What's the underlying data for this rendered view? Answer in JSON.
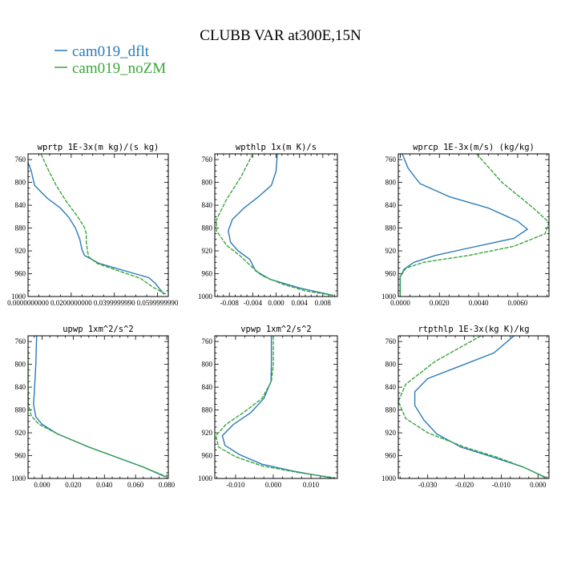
{
  "figure": {
    "title": "CLUBB VAR at300E,15N"
  },
  "legend": [
    {
      "name": "cam019_dflt",
      "color": "#2b7bb9"
    },
    {
      "name": "cam019_noZM",
      "color": "#3aa63a"
    }
  ],
  "chart_data": [
    {
      "type": "line",
      "title": "wprtp  1E-3x(m kg)/(s kg)",
      "xlim": [
        0.0,
        0.065
      ],
      "ylim": [
        1000,
        750
      ],
      "xticks": [
        0.0,
        0.02,
        0.04,
        0.06
      ],
      "xtick_labels": [
        "0.0000000000",
        "0.0200000000",
        "0.0399999990",
        "0.0599999990"
      ],
      "yticks": [
        760,
        800,
        840,
        880,
        920,
        960,
        1000
      ],
      "series": [
        {
          "name": "cam019_dflt",
          "points": [
            [
              0.0,
              765
            ],
            [
              0.0015,
              780
            ],
            [
              0.003,
              805
            ],
            [
              0.009,
              828
            ],
            [
              0.015,
              845
            ],
            [
              0.019,
              862
            ],
            [
              0.022,
              880
            ],
            [
              0.024,
              900
            ],
            [
              0.025,
              918
            ],
            [
              0.0262,
              928
            ],
            [
              0.033,
              942
            ],
            [
              0.045,
              955
            ],
            [
              0.056,
              967
            ],
            [
              0.059,
              977
            ],
            [
              0.063,
              996
            ]
          ]
        },
        {
          "name": "cam019_noZM",
          "points": [
            [
              0.006,
              750
            ],
            [
              0.009,
              775
            ],
            [
              0.013,
              805
            ],
            [
              0.018,
              835
            ],
            [
              0.023,
              860
            ],
            [
              0.026,
              878
            ],
            [
              0.027,
              890
            ],
            [
              0.027,
              905
            ],
            [
              0.0275,
              918
            ],
            [
              0.028,
              930
            ],
            [
              0.032,
              942
            ],
            [
              0.042,
              955
            ],
            [
              0.052,
              968
            ],
            [
              0.058,
              984
            ],
            [
              0.064,
              996
            ]
          ]
        }
      ]
    },
    {
      "type": "line",
      "title": "wpthlp  1x(m K)/s",
      "xlim": [
        -0.0105,
        0.0105
      ],
      "ylim": [
        1000,
        750
      ],
      "xticks": [
        -0.008,
        -0.004,
        0.0,
        0.004,
        0.008
      ],
      "xtick_labels": [
        "-0.008",
        "-0.004",
        "0.000",
        "0.004",
        "0.008"
      ],
      "yticks": [
        760,
        800,
        840,
        880,
        920,
        960,
        1000
      ],
      "series": [
        {
          "name": "cam019_dflt",
          "points": [
            [
              0.0002,
              750
            ],
            [
              0.0,
              780
            ],
            [
              -0.0008,
              805
            ],
            [
              -0.003,
              825
            ],
            [
              -0.0055,
              845
            ],
            [
              -0.0075,
              865
            ],
            [
              -0.0082,
              885
            ],
            [
              -0.0078,
              905
            ],
            [
              -0.0065,
              920
            ],
            [
              -0.0045,
              935
            ],
            [
              -0.0035,
              955
            ],
            [
              -0.001,
              970
            ],
            [
              0.004,
              985
            ],
            [
              0.0098,
              998
            ]
          ]
        },
        {
          "name": "cam019_noZM",
          "points": [
            [
              -0.004,
              750
            ],
            [
              -0.006,
              790
            ],
            [
              -0.0085,
              830
            ],
            [
              -0.0102,
              865
            ],
            [
              -0.0102,
              885
            ],
            [
              -0.0085,
              910
            ],
            [
              -0.006,
              930
            ],
            [
              -0.0045,
              945
            ],
            [
              -0.0025,
              963
            ],
            [
              0.001,
              978
            ],
            [
              0.005,
              990
            ],
            [
              0.0098,
              998
            ]
          ]
        }
      ]
    },
    {
      "type": "line",
      "title": "wprcp  1E-3x(m/s) (kg/kg)",
      "xlim": [
        -0.0001,
        0.0076
      ],
      "ylim": [
        1000,
        750
      ],
      "xticks": [
        0.0,
        0.002,
        0.004,
        0.006
      ],
      "xtick_labels": [
        "0.0000",
        "0.0020",
        "0.0040",
        "0.0060"
      ],
      "yticks": [
        760,
        800,
        840,
        880,
        920,
        960,
        1000
      ],
      "series": [
        {
          "name": "cam019_dflt",
          "points": [
            [
              0.0001,
              750
            ],
            [
              0.0004,
              775
            ],
            [
              0.001,
              802
            ],
            [
              0.0025,
              825
            ],
            [
              0.0045,
              845
            ],
            [
              0.006,
              868
            ],
            [
              0.0065,
              882
            ],
            [
              0.0058,
              898
            ],
            [
              0.0035,
              915
            ],
            [
              0.0018,
              928
            ],
            [
              0.0007,
              940
            ],
            [
              0.0002,
              952
            ],
            [
              0.0,
              965
            ],
            [
              0.0,
              1000
            ]
          ]
        },
        {
          "name": "cam019_noZM",
          "points": [
            [
              0.0039,
              750
            ],
            [
              0.0052,
              800
            ],
            [
              0.0068,
              845
            ],
            [
              0.0076,
              870
            ],
            [
              0.0074,
              890
            ],
            [
              0.0058,
              912
            ],
            [
              0.0035,
              928
            ],
            [
              0.0012,
              940
            ],
            [
              0.0003,
              950
            ],
            [
              0.0,
              965
            ],
            [
              0.0,
              1000
            ]
          ]
        }
      ]
    },
    {
      "type": "line",
      "title": "upwp  1xm^2/s^2",
      "xlim": [
        -0.009,
        0.081
      ],
      "ylim": [
        1000,
        750
      ],
      "xticks": [
        0.0,
        0.02,
        0.04,
        0.06,
        0.08
      ],
      "xtick_labels": [
        "0.000",
        "0.020",
        "0.040",
        "0.060",
        "0.080"
      ],
      "yticks": [
        760,
        800,
        840,
        880,
        920,
        960,
        1000
      ],
      "series": [
        {
          "name": "cam019_dflt",
          "points": [
            [
              -0.0035,
              750
            ],
            [
              -0.004,
              800
            ],
            [
              -0.005,
              850
            ],
            [
              -0.0055,
              870
            ],
            [
              -0.004,
              892
            ],
            [
              0.0,
              905
            ],
            [
              0.01,
              922
            ],
            [
              0.03,
              945
            ],
            [
              0.05,
              965
            ],
            [
              0.065,
              980
            ],
            [
              0.079,
              997
            ]
          ]
        },
        {
          "name": "cam019_noZM",
          "points": [
            [
              -0.009,
              775
            ],
            [
              -0.009,
              830
            ],
            [
              -0.0088,
              870
            ],
            [
              -0.007,
              890
            ],
            [
              -0.002,
              905
            ],
            [
              0.01,
              922
            ],
            [
              0.03,
              945
            ],
            [
              0.05,
              965
            ],
            [
              0.065,
              980
            ],
            [
              0.08,
              997
            ]
          ]
        }
      ]
    },
    {
      "type": "line",
      "title": "vpwp  1xm^2/s^2",
      "xlim": [
        -0.0155,
        0.017
      ],
      "ylim": [
        1000,
        750
      ],
      "xticks": [
        -0.01,
        0.0,
        0.01
      ],
      "xtick_labels": [
        "-0.010",
        "0.000",
        "0.010"
      ],
      "yticks": [
        760,
        800,
        840,
        880,
        920,
        960,
        1000
      ],
      "series": [
        {
          "name": "cam019_dflt",
          "points": [
            [
              -0.0005,
              750
            ],
            [
              -0.0005,
              800
            ],
            [
              -0.0006,
              830
            ],
            [
              -0.0025,
              860
            ],
            [
              -0.006,
              885
            ],
            [
              -0.0105,
              905
            ],
            [
              -0.0135,
              925
            ],
            [
              -0.0128,
              942
            ],
            [
              -0.009,
              958
            ],
            [
              -0.003,
              975
            ],
            [
              0.006,
              988
            ],
            [
              0.0155,
              999
            ]
          ]
        },
        {
          "name": "cam019_noZM",
          "points": [
            [
              0.0,
              750
            ],
            [
              0.0,
              800
            ],
            [
              -0.0005,
              830
            ],
            [
              -0.003,
              860
            ],
            [
              -0.008,
              885
            ],
            [
              -0.0125,
              905
            ],
            [
              -0.0152,
              925
            ],
            [
              -0.0145,
              945
            ],
            [
              -0.01,
              962
            ],
            [
              -0.003,
              978
            ],
            [
              0.007,
              990
            ],
            [
              0.0165,
              999
            ]
          ]
        }
      ]
    },
    {
      "type": "line",
      "title": "rtpthlp  1E-3x(kg K)/kg",
      "xlim": [
        -0.038,
        0.003
      ],
      "ylim": [
        1000,
        750
      ],
      "xticks": [
        -0.03,
        -0.02,
        -0.01,
        0.0
      ],
      "xtick_labels": [
        "-0.030",
        "-0.020",
        "-0.010",
        "0.000"
      ],
      "yticks": [
        760,
        800,
        840,
        880,
        920,
        960,
        1000
      ],
      "series": [
        {
          "name": "cam019_dflt",
          "points": [
            [
              -0.0065,
              750
            ],
            [
              -0.012,
              780
            ],
            [
              -0.022,
              805
            ],
            [
              -0.03,
              825
            ],
            [
              -0.0335,
              848
            ],
            [
              -0.0335,
              872
            ],
            [
              -0.031,
              898
            ],
            [
              -0.0275,
              922
            ],
            [
              -0.021,
              945
            ],
            [
              -0.012,
              963
            ],
            [
              -0.004,
              980
            ],
            [
              0.0,
              992
            ],
            [
              0.002,
              999
            ]
          ]
        },
        {
          "name": "cam019_noZM",
          "points": [
            [
              -0.0155,
              750
            ],
            [
              -0.028,
              795
            ],
            [
              -0.036,
              835
            ],
            [
              -0.038,
              865
            ],
            [
              -0.036,
              895
            ],
            [
              -0.03,
              920
            ],
            [
              -0.02,
              945
            ],
            [
              -0.011,
              963
            ],
            [
              -0.004,
              980
            ],
            [
              0.0,
              992
            ],
            [
              0.0025,
              999
            ]
          ]
        }
      ]
    }
  ]
}
